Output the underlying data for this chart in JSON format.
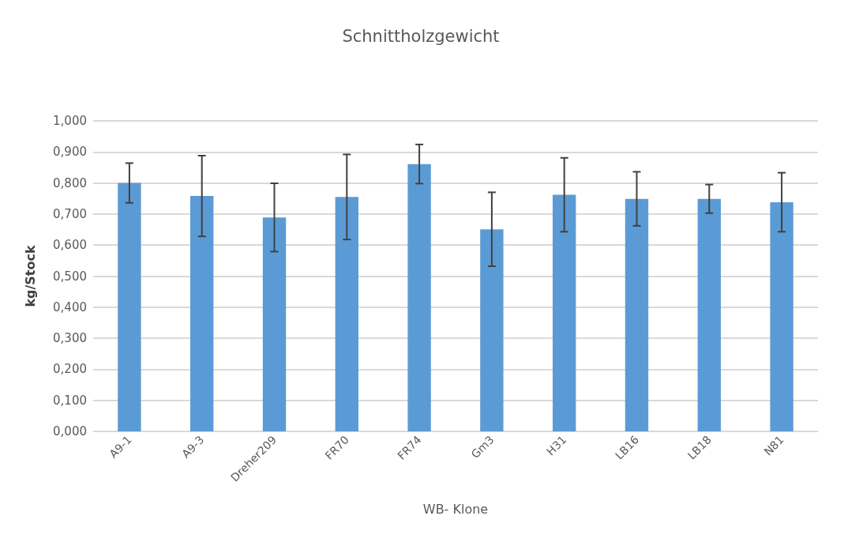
{
  "chart_data": {
    "type": "bar",
    "title": "Schnittholzgewicht",
    "xlabel": "WB- Klone",
    "ylabel": "kg/Stock",
    "categories": [
      "A9-1",
      "A9-3",
      "Dreher209",
      "FR70",
      "FR74",
      "Gm3",
      "H31",
      "LB16",
      "LB18",
      "N81"
    ],
    "values": [
      0.8,
      0.758,
      0.689,
      0.755,
      0.861,
      0.651,
      0.762,
      0.749,
      0.749,
      0.738
    ],
    "errors": [
      0.064,
      0.13,
      0.11,
      0.137,
      0.063,
      0.119,
      0.119,
      0.087,
      0.046,
      0.095
    ],
    "color": "#5b9bd5",
    "ylim": [
      0,
      1
    ],
    "yticks": [
      {
        "value": 0,
        "label": "0,000"
      },
      {
        "value": 0.1,
        "label": "0,100"
      },
      {
        "value": 0.2,
        "label": "0,200"
      },
      {
        "value": 0.3,
        "label": "0,300"
      },
      {
        "value": 0.4,
        "label": "0,400"
      },
      {
        "value": 0.5,
        "label": "0,500"
      },
      {
        "value": 0.6,
        "label": "0,600"
      },
      {
        "value": 0.7,
        "label": "0,700"
      },
      {
        "value": 0.8,
        "label": "0,800"
      },
      {
        "value": 0.9,
        "label": "0,900"
      },
      {
        "value": 1,
        "label": "1,000"
      }
    ],
    "grid": "y"
  }
}
